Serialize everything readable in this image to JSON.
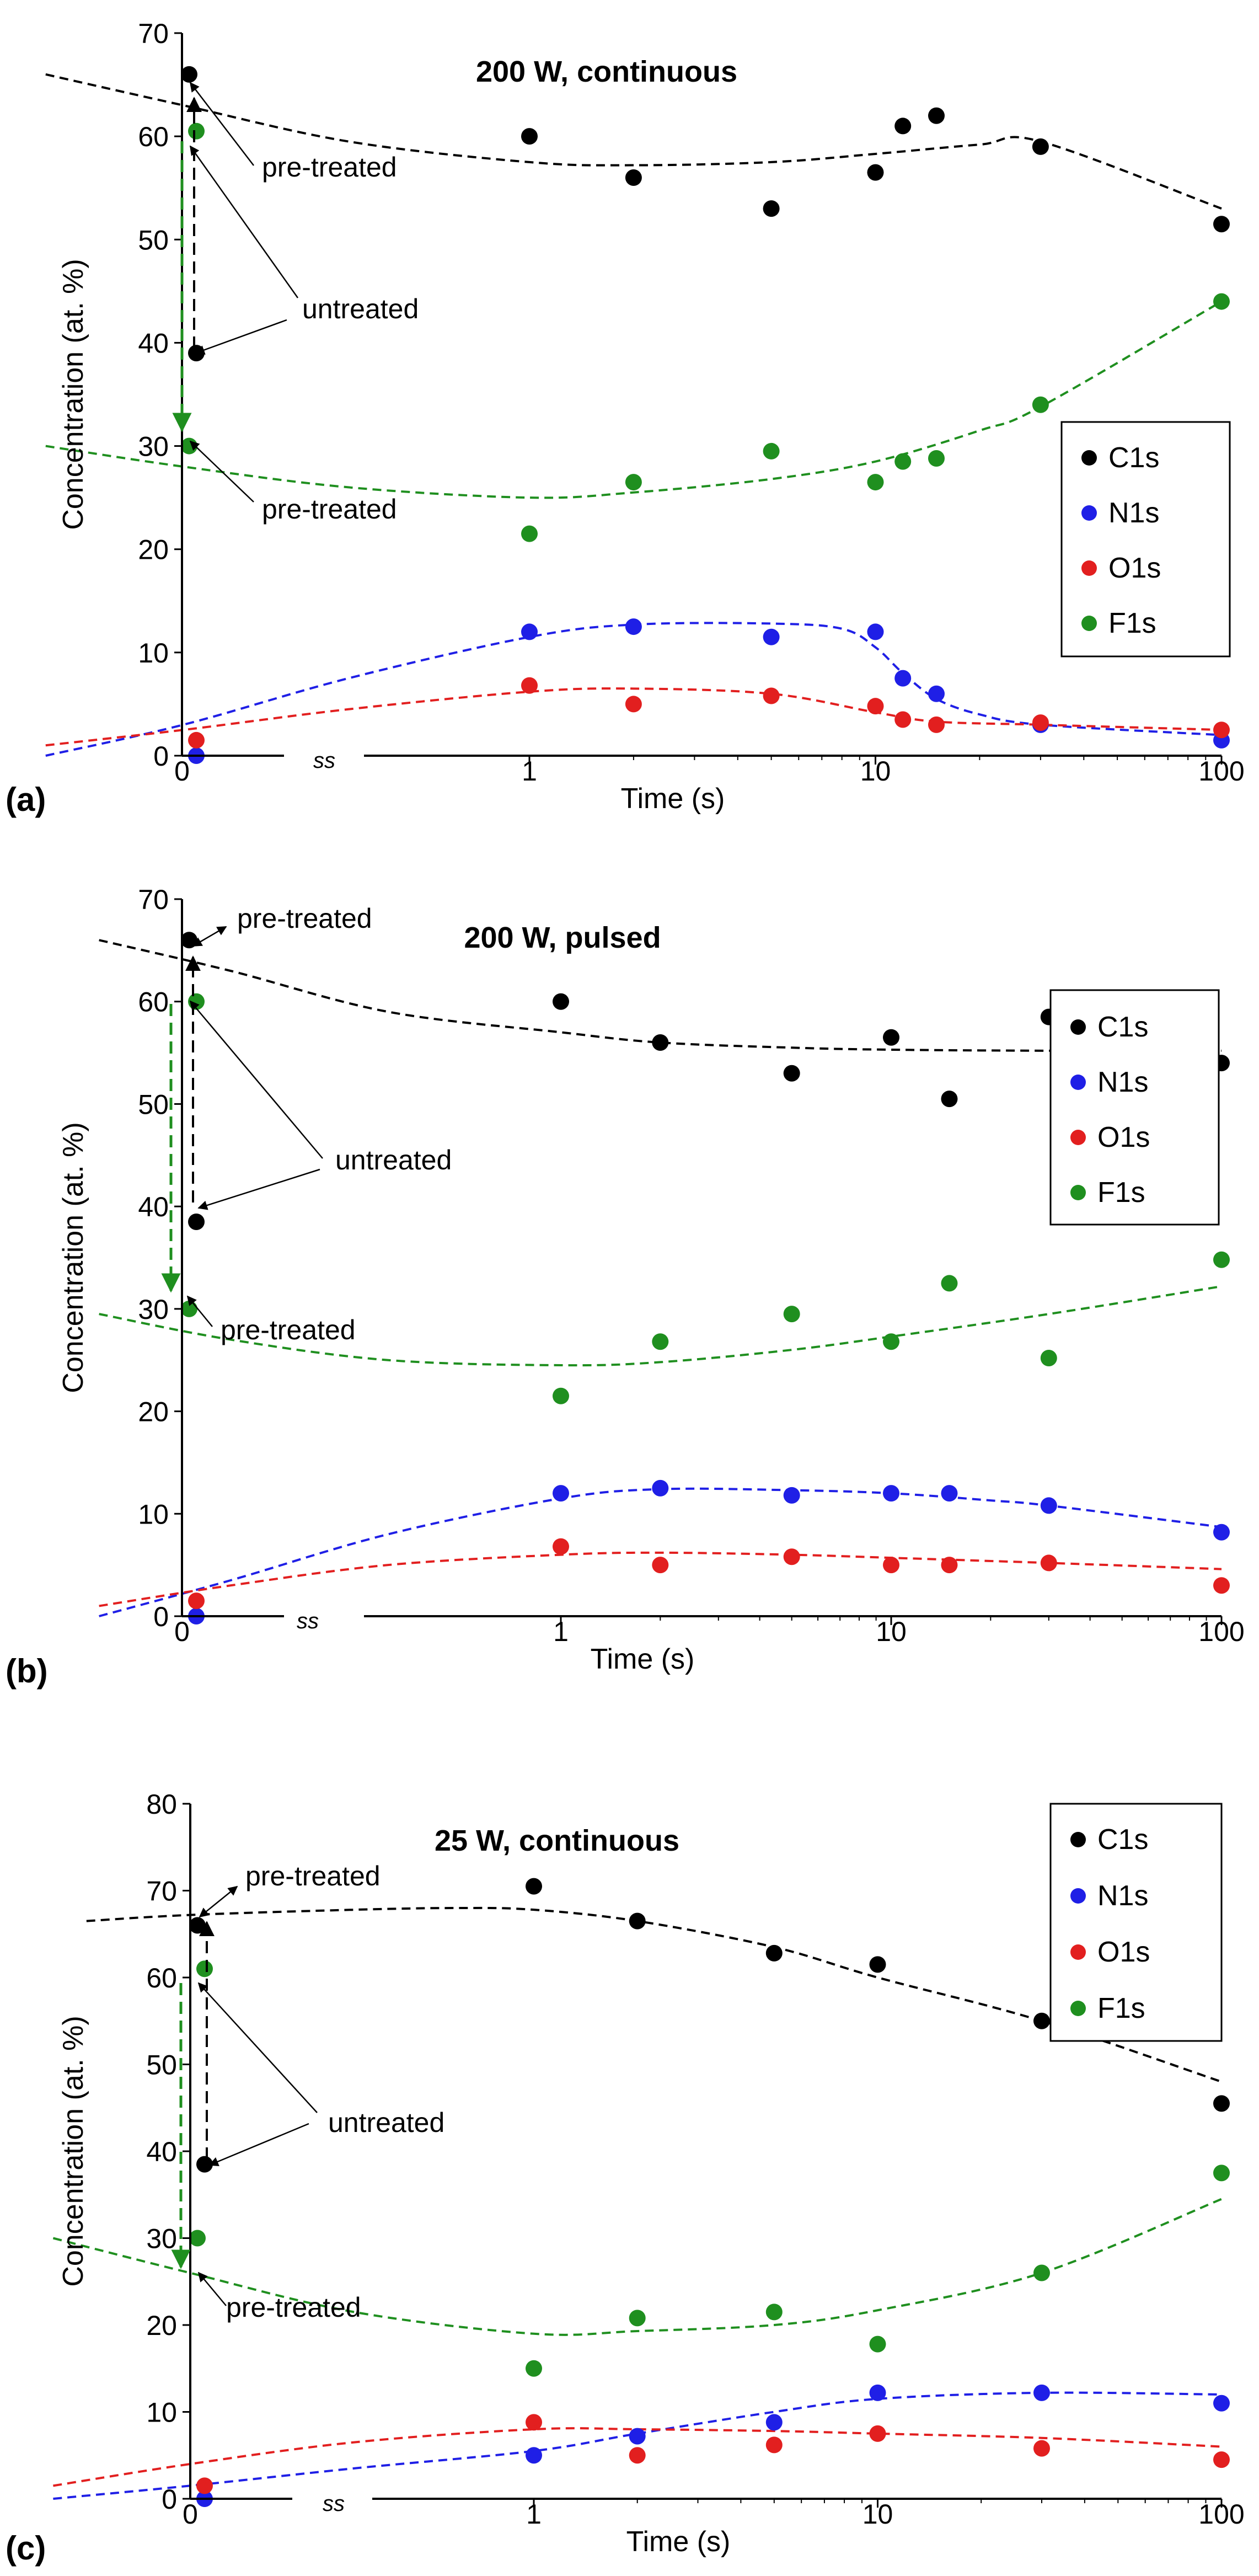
{
  "figure": {
    "panels": [
      "(a)",
      "(b)",
      "(c)"
    ]
  },
  "chart_data": [
    {
      "type": "scatter",
      "panel_label": "(a)",
      "title": "200 W, continuous",
      "xlabel": "Time (s)",
      "ylabel": "Concentration (at. %)",
      "xscale": "log with axis break",
      "axis_break_symbol": "ss",
      "x_zero_label": "0",
      "xticks": [
        1,
        10,
        100
      ],
      "xtick_labels": [
        "1",
        "10",
        "100"
      ],
      "ylim": [
        0,
        70
      ],
      "yticks": [
        0,
        10,
        20,
        30,
        40,
        50,
        60,
        70
      ],
      "legend_position": "right-middle",
      "colors": {
        "C1s": "#000000",
        "N1s": "#1f1fe6",
        "O1s": "#e21f1f",
        "F1s": "#1f8f1f"
      },
      "series": [
        {
          "name": "C1s",
          "x": [
            0,
            0,
            1,
            2,
            5,
            10,
            12,
            15,
            30,
            100
          ],
          "values": [
            39,
            66,
            60,
            56,
            53,
            56.5,
            61,
            62,
            59,
            51.5
          ]
        },
        {
          "name": "N1s",
          "x": [
            0,
            1,
            2,
            5,
            10,
            12,
            15,
            30,
            100
          ],
          "values": [
            0,
            12,
            12.5,
            11.5,
            12,
            7.5,
            6,
            3,
            1.5
          ]
        },
        {
          "name": "O1s",
          "x": [
            0,
            1,
            2,
            5,
            10,
            12,
            15,
            30,
            100
          ],
          "values": [
            1.5,
            6.8,
            5,
            5.8,
            4.8,
            3.5,
            3,
            3.2,
            2.5
          ]
        },
        {
          "name": "F1s",
          "x": [
            0,
            0,
            1,
            2,
            5,
            10,
            12,
            15,
            30,
            100
          ],
          "values": [
            60.5,
            30,
            21.5,
            26.5,
            29.5,
            26.5,
            28.5,
            28.8,
            34,
            44
          ]
        }
      ],
      "trendlines": [
        {
          "name": "C1s",
          "x": [
            0.04,
            0.1,
            0.3,
            1,
            2,
            5,
            10,
            20,
            30,
            100
          ],
          "values": [
            66,
            63,
            59.5,
            57.5,
            57.2,
            57.5,
            58.3,
            59.2,
            59.5,
            53
          ]
        },
        {
          "name": "F1s",
          "x": [
            0.04,
            0.1,
            0.3,
            1,
            2,
            5,
            10,
            20,
            30,
            100
          ],
          "values": [
            30,
            28,
            26,
            25,
            25.5,
            26.8,
            28.5,
            31.5,
            33.8,
            44
          ]
        },
        {
          "name": "N1s",
          "x": [
            0.04,
            0.1,
            0.3,
            1,
            2,
            5,
            8,
            10,
            12,
            15,
            20,
            30,
            100
          ],
          "values": [
            0,
            3,
            7.5,
            11.5,
            12.7,
            12.8,
            12.3,
            10.5,
            8,
            5.5,
            4,
            3,
            2
          ]
        },
        {
          "name": "O1s",
          "x": [
            0.04,
            0.1,
            0.3,
            1,
            2,
            5,
            10,
            15,
            30,
            100
          ],
          "values": [
            1,
            2.5,
            4.5,
            6.2,
            6.5,
            6,
            4.2,
            3.3,
            3,
            2.5
          ]
        }
      ],
      "annotations": [
        {
          "text": "pre-treated",
          "refers_to": "C1s at t=0"
        },
        {
          "text": "untreated",
          "refers_to": "C1s and F1s at t=0"
        },
        {
          "text": "pre-treated",
          "refers_to": "F1s at t=0"
        }
      ]
    },
    {
      "type": "scatter",
      "panel_label": "(b)",
      "title": "200 W, pulsed",
      "xlabel": "Time (s)",
      "ylabel": "Concentration (at. %)",
      "xscale": "log with axis break",
      "axis_break_symbol": "ss",
      "x_zero_label": "0",
      "xticks": [
        1,
        10,
        100
      ],
      "xtick_labels": [
        "1",
        "10",
        "100"
      ],
      "ylim": [
        0,
        70
      ],
      "yticks": [
        0,
        10,
        20,
        30,
        40,
        50,
        60,
        70
      ],
      "legend_position": "right-middle",
      "colors": {
        "C1s": "#000000",
        "N1s": "#1f1fe6",
        "O1s": "#e21f1f",
        "F1s": "#1f8f1f"
      },
      "series": [
        {
          "name": "C1s",
          "x": [
            0,
            0,
            1,
            2,
            5,
            10,
            15,
            30,
            100
          ],
          "values": [
            38.5,
            66,
            60,
            56,
            53,
            56.5,
            50.5,
            58.5,
            54
          ]
        },
        {
          "name": "N1s",
          "x": [
            0,
            1,
            2,
            5,
            10,
            15,
            30,
            100
          ],
          "values": [
            0,
            12,
            12.5,
            11.8,
            12,
            12,
            10.8,
            8.2
          ]
        },
        {
          "name": "O1s",
          "x": [
            0,
            1,
            2,
            5,
            10,
            15,
            30,
            100
          ],
          "values": [
            1.5,
            6.8,
            5,
            5.8,
            5,
            5,
            5.2,
            3
          ]
        },
        {
          "name": "F1s",
          "x": [
            0,
            0,
            1,
            2,
            5,
            10,
            15,
            30,
            100
          ],
          "values": [
            60,
            30,
            21.5,
            26.8,
            29.5,
            26.8,
            32.5,
            25.2,
            34.8
          ]
        }
      ],
      "trendlines": [
        {
          "name": "C1s",
          "x": [
            0.04,
            0.1,
            0.3,
            1,
            2,
            5,
            10,
            30,
            100
          ],
          "values": [
            66,
            63,
            59,
            57,
            56,
            55.5,
            55.3,
            55.2,
            55.2
          ]
        },
        {
          "name": "F1s",
          "x": [
            0.04,
            0.1,
            0.3,
            1,
            2,
            5,
            10,
            30,
            100
          ],
          "values": [
            29.5,
            27,
            25,
            24.5,
            24.8,
            26,
            27.3,
            29.5,
            32.2
          ]
        },
        {
          "name": "N1s",
          "x": [
            0.04,
            0.1,
            0.3,
            1,
            2,
            5,
            10,
            20,
            30,
            100
          ],
          "values": [
            0,
            3.5,
            8,
            11.5,
            12.4,
            12.3,
            12,
            11.3,
            10.8,
            8.7
          ]
        },
        {
          "name": "O1s",
          "x": [
            0.04,
            0.1,
            0.3,
            1,
            2,
            5,
            10,
            30,
            100
          ],
          "values": [
            1,
            3,
            5,
            6,
            6.2,
            6,
            5.7,
            5.2,
            4.6
          ]
        }
      ],
      "annotations": [
        {
          "text": "pre-treated",
          "refers_to": "C1s at t=0"
        },
        {
          "text": "untreated",
          "refers_to": "C1s and F1s at t=0"
        },
        {
          "text": "pre-treated",
          "refers_to": "F1s at t=0"
        }
      ]
    },
    {
      "type": "scatter",
      "panel_label": "(c)",
      "title": "25 W, continuous",
      "xlabel": "Time (s)",
      "ylabel": "Concentration (at. %)",
      "xscale": "log with axis break",
      "axis_break_symbol": "ss",
      "x_zero_label": "0",
      "xticks": [
        1,
        10,
        100
      ],
      "xtick_labels": [
        "1",
        "10",
        "100"
      ],
      "ylim": [
        0,
        80
      ],
      "yticks": [
        0,
        10,
        20,
        30,
        40,
        50,
        60,
        70,
        80
      ],
      "legend_position": "top-right",
      "colors": {
        "C1s": "#000000",
        "N1s": "#1f1fe6",
        "O1s": "#e21f1f",
        "F1s": "#1f8f1f"
      },
      "series": [
        {
          "name": "C1s",
          "x": [
            0,
            0,
            1,
            2,
            5,
            10,
            30,
            100
          ],
          "values": [
            38.5,
            66,
            70.5,
            66.5,
            62.8,
            61.5,
            55,
            45.5
          ]
        },
        {
          "name": "N1s",
          "x": [
            0,
            1,
            2,
            5,
            10,
            30,
            100
          ],
          "values": [
            0,
            5,
            7.2,
            8.8,
            12.2,
            12.2,
            11
          ]
        },
        {
          "name": "O1s",
          "x": [
            0,
            1,
            2,
            5,
            10,
            30,
            100
          ],
          "values": [
            1.5,
            8.8,
            5,
            6.2,
            7.5,
            5.8,
            4.5
          ]
        },
        {
          "name": "F1s",
          "x": [
            0,
            0,
            1,
            2,
            5,
            10,
            30,
            100
          ],
          "values": [
            61,
            30,
            15,
            20.8,
            21.5,
            17.8,
            26,
            37.5
          ]
        }
      ],
      "trendlines": [
        {
          "name": "C1s",
          "x": [
            0.05,
            0.1,
            0.3,
            0.6,
            1,
            2,
            5,
            10,
            30,
            100
          ],
          "values": [
            66.5,
            67.2,
            67.8,
            68,
            67.8,
            66.5,
            63.5,
            60,
            55,
            48
          ]
        },
        {
          "name": "F1s",
          "x": [
            0.04,
            0.1,
            0.3,
            1,
            2,
            5,
            10,
            30,
            100
          ],
          "values": [
            30,
            26,
            21.5,
            19,
            19.3,
            20,
            21.7,
            26,
            34.5
          ]
        },
        {
          "name": "N1s",
          "x": [
            0.04,
            0.1,
            0.3,
            1,
            2,
            5,
            10,
            30,
            100
          ],
          "values": [
            0,
            1.5,
            3.5,
            5.5,
            7.5,
            10,
            11.5,
            12.2,
            12
          ]
        },
        {
          "name": "O1s",
          "x": [
            0.04,
            0.1,
            0.3,
            1,
            2,
            5,
            10,
            30,
            100
          ],
          "values": [
            1.5,
            4,
            6.5,
            8,
            8,
            7.8,
            7.5,
            7,
            6
          ]
        }
      ],
      "annotations": [
        {
          "text": "pre-treated",
          "refers_to": "C1s at t=0"
        },
        {
          "text": "untreated",
          "refers_to": "C1s and F1s at t=0"
        },
        {
          "text": "pre-treated",
          "refers_to": "F1s at t=0"
        }
      ]
    }
  ]
}
